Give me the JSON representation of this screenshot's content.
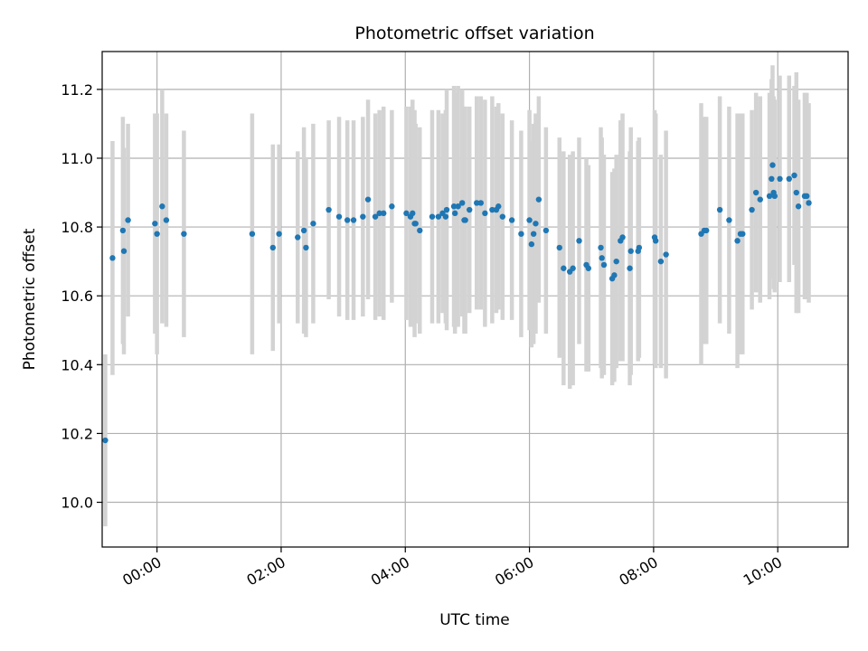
{
  "chart_data": {
    "type": "scatter",
    "title": "Photometric offset variation",
    "xlabel": "UTC time",
    "ylabel": "Photometric offset",
    "x_unit": "time of day (HH:MM, UTC)",
    "xlim": [
      "-00:53",
      "11:08"
    ],
    "ylim": [
      9.87,
      11.31
    ],
    "xticks": [
      "00:00",
      "02:00",
      "04:00",
      "06:00",
      "08:00",
      "10:00"
    ],
    "yticks": [
      "10.0",
      "10.2",
      "10.4",
      "10.6",
      "10.8",
      "11.0",
      "11.2"
    ],
    "grid": true,
    "legend": "none",
    "colors": {
      "points": "#1f77b4",
      "errorbars": "#d3d3d3",
      "grid": "#b0b0b0"
    },
    "series": [
      {
        "x": [
          "-00:50",
          "-00:43",
          "-00:33",
          "-00:32",
          "-00:28",
          "-00:02",
          "00:00",
          "00:05",
          "00:09",
          "00:26",
          "01:32",
          "01:52",
          "01:58",
          "02:16",
          "02:22",
          "02:24",
          "02:31",
          "02:46",
          "02:56",
          "03:04",
          "03:10",
          "03:19",
          "03:24",
          "03:31",
          "03:35",
          "03:39",
          "03:47",
          "04:01",
          "04:05",
          "04:07",
          "04:09",
          "04:10",
          "04:14",
          "04:26",
          "04:32",
          "04:36",
          "04:39",
          "04:40",
          "04:47",
          "04:48",
          "04:51",
          "04:55",
          "04:57",
          "04:58",
          "05:02",
          "05:09",
          "05:13",
          "05:17",
          "05:24",
          "05:28",
          "05:30",
          "05:34",
          "05:43",
          "05:52",
          "06:00",
          "06:02",
          "06:04",
          "06:06",
          "06:09",
          "06:16",
          "06:29",
          "06:33",
          "06:39",
          "06:42",
          "06:48",
          "06:55",
          "06:57",
          "07:09",
          "07:10",
          "07:12",
          "07:20",
          "07:22",
          "07:24",
          "07:28",
          "07:30",
          "07:37",
          "07:38",
          "07:45",
          "07:46",
          "08:01",
          "08:02",
          "08:07",
          "08:12",
          "08:46",
          "08:49",
          "08:51",
          "09:04",
          "09:13",
          "09:21",
          "09:24",
          "09:26",
          "09:35",
          "09:39",
          "09:43",
          "09:52",
          "09:54",
          "09:55",
          "09:56",
          "09:57",
          "10:02",
          "10:11",
          "10:16",
          "10:18",
          "10:20",
          "10:26",
          "10:28",
          "10:30"
        ],
        "y": [
          10.18,
          10.71,
          10.79,
          10.73,
          10.82,
          10.81,
          10.78,
          10.86,
          10.82,
          10.78,
          10.78,
          10.74,
          10.78,
          10.77,
          10.79,
          10.74,
          10.81,
          10.85,
          10.83,
          10.82,
          10.82,
          10.83,
          10.88,
          10.83,
          10.84,
          10.84,
          10.86,
          10.84,
          10.83,
          10.84,
          10.81,
          10.81,
          10.79,
          10.83,
          10.83,
          10.84,
          10.83,
          10.85,
          10.86,
          10.84,
          10.86,
          10.87,
          10.82,
          10.82,
          10.85,
          10.87,
          10.87,
          10.84,
          10.85,
          10.85,
          10.86,
          10.83,
          10.82,
          10.78,
          10.82,
          10.75,
          10.78,
          10.81,
          10.88,
          10.79,
          10.74,
          10.68,
          10.67,
          10.68,
          10.76,
          10.69,
          10.68,
          10.74,
          10.71,
          10.69,
          10.65,
          10.66,
          10.7,
          10.76,
          10.77,
          10.68,
          10.73,
          10.73,
          10.74,
          10.77,
          10.76,
          10.7,
          10.72,
          10.78,
          10.79,
          10.79,
          10.85,
          10.82,
          10.76,
          10.78,
          10.78,
          10.85,
          10.9,
          10.88,
          10.89,
          10.94,
          10.98,
          10.9,
          10.89,
          10.94,
          10.94,
          10.95,
          10.9,
          10.86,
          10.89,
          10.89,
          10.87
        ],
        "yerr": [
          0.25,
          0.34,
          0.33,
          0.3,
          0.28,
          0.32,
          0.35,
          0.34,
          0.31,
          0.3,
          0.35,
          0.3,
          0.26,
          0.25,
          0.3,
          0.26,
          0.29,
          0.26,
          0.29,
          0.29,
          0.29,
          0.29,
          0.29,
          0.3,
          0.3,
          0.31,
          0.28,
          0.31,
          0.32,
          0.33,
          0.33,
          0.29,
          0.3,
          0.31,
          0.31,
          0.29,
          0.31,
          0.35,
          0.35,
          0.35,
          0.35,
          0.33,
          0.33,
          0.33,
          0.3,
          0.31,
          0.31,
          0.33,
          0.33,
          0.3,
          0.3,
          0.3,
          0.29,
          0.3,
          0.32,
          0.3,
          0.32,
          0.32,
          0.3,
          0.3,
          0.32,
          0.34,
          0.34,
          0.34,
          0.3,
          0.31,
          0.3,
          0.35,
          0.35,
          0.32,
          0.31,
          0.31,
          0.31,
          0.35,
          0.36,
          0.34,
          0.36,
          0.32,
          0.32,
          0.37,
          0.37,
          0.31,
          0.36,
          0.38,
          0.33,
          0.33,
          0.33,
          0.33,
          0.37,
          0.35,
          0.35,
          0.29,
          0.29,
          0.3,
          0.3,
          0.29,
          0.29,
          0.28,
          0.28,
          0.3,
          0.3,
          0.26,
          0.35,
          0.31,
          0.3,
          0.3,
          0.29
        ]
      }
    ]
  }
}
